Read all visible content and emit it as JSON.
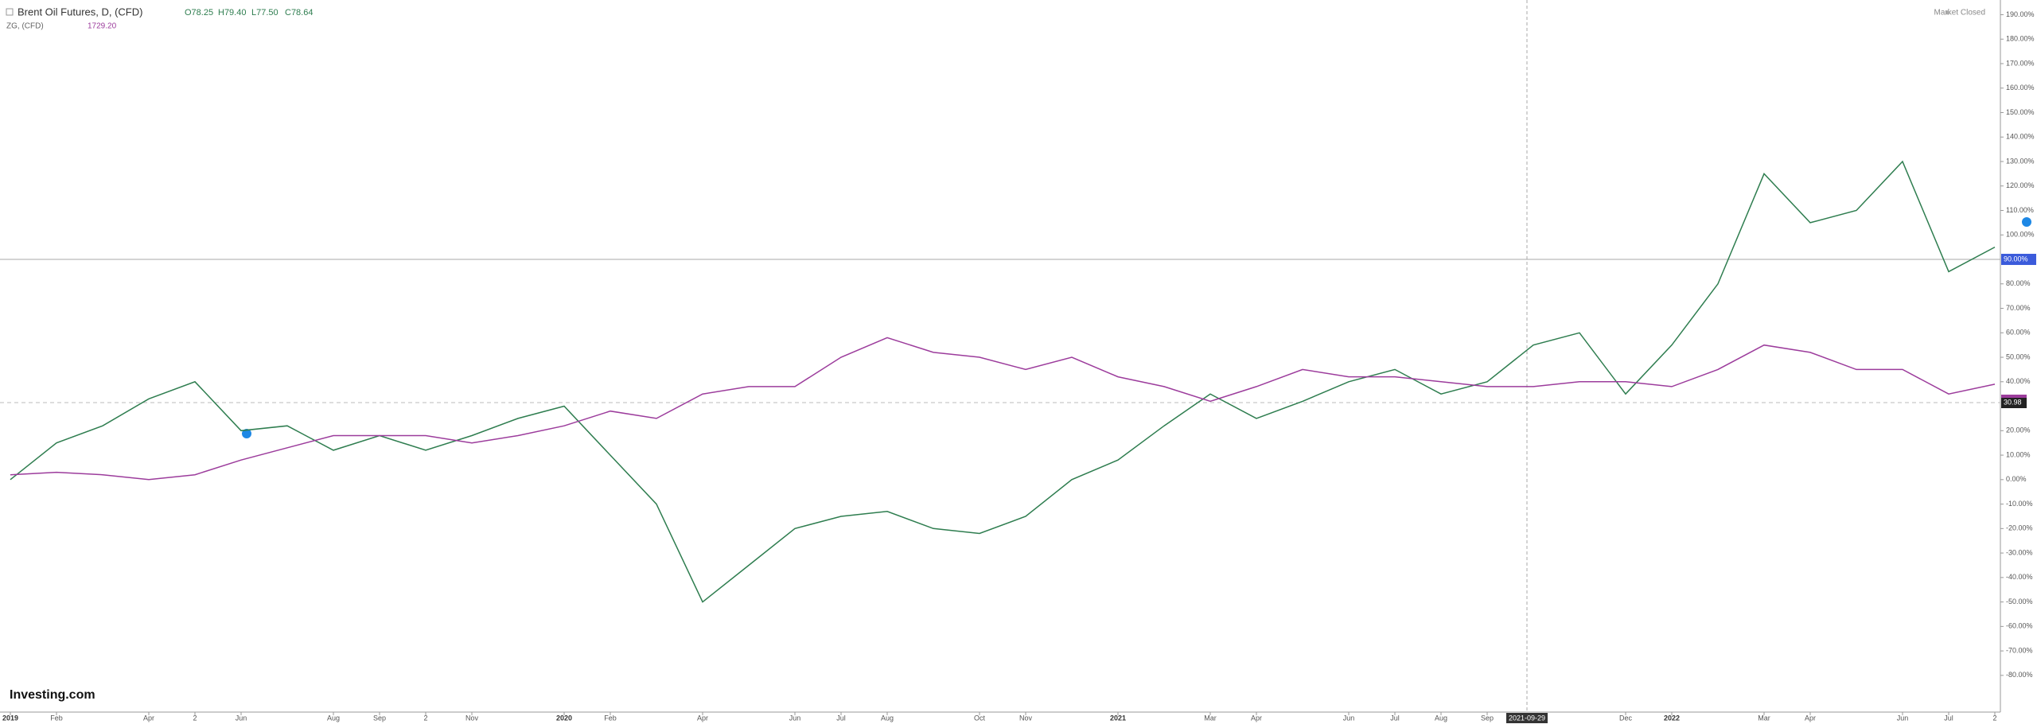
{
  "header": {
    "ohlc": [
      "O78.25",
      "H79.40",
      "L77.50",
      "C78.64"
    ],
    "second_value": "1729.20",
    "status": "Market Closed",
    "logo": "Investing.com"
  },
  "chart_data": {
    "type": "line",
    "x": [
      "2019-01",
      "2019-02",
      "2019-03",
      "2019-04",
      "2019-05",
      "2019-06",
      "2019-07",
      "2019-08",
      "2019-09",
      "2019-10",
      "2019-11",
      "2019-12",
      "2020-01",
      "2020-02",
      "2020-03",
      "2020-04",
      "2020-05",
      "2020-06",
      "2020-07",
      "2020-08",
      "2020-09",
      "2020-10",
      "2020-11",
      "2020-12",
      "2021-01",
      "2021-02",
      "2021-03",
      "2021-04",
      "2021-05",
      "2021-06",
      "2021-07",
      "2021-08",
      "2021-09",
      "2021-10",
      "2021-11",
      "2021-12",
      "2022-01",
      "2022-02",
      "2022-03",
      "2022-04",
      "2022-05",
      "2022-06",
      "2022-07",
      "2022-08"
    ],
    "xlim": [
      "2019-01",
      "2022-08"
    ],
    "xticks": [
      {
        "value": "2019-01",
        "label": "2019"
      },
      {
        "value": "2019-02",
        "label": "Feb"
      },
      {
        "value": "2019-04",
        "label": "Apr"
      },
      {
        "value": "2019-05",
        "label": "2"
      },
      {
        "value": "2019-06",
        "label": "Jun"
      },
      {
        "value": "2019-08",
        "label": "Aug"
      },
      {
        "value": "2019-09",
        "label": "Sep"
      },
      {
        "value": "2019-10",
        "label": "2"
      },
      {
        "value": "2019-11",
        "label": "Nov"
      },
      {
        "value": "2020-01",
        "label": "2020"
      },
      {
        "value": "2020-02",
        "label": "Feb"
      },
      {
        "value": "2020-04",
        "label": "Apr"
      },
      {
        "value": "2020-06",
        "label": "Jun"
      },
      {
        "value": "2020-07",
        "label": "Jul"
      },
      {
        "value": "2020-08",
        "label": "Aug"
      },
      {
        "value": "2020-10",
        "label": "Oct"
      },
      {
        "value": "2020-11",
        "label": "Nov"
      },
      {
        "value": "2021-01",
        "label": "2021"
      },
      {
        "value": "2021-03",
        "label": "Mar"
      },
      {
        "value": "2021-04",
        "label": "Apr"
      },
      {
        "value": "2021-06",
        "label": "Jun"
      },
      {
        "value": "2021-07",
        "label": "Jul"
      },
      {
        "value": "2021-08",
        "label": "Aug"
      },
      {
        "value": "2021-09",
        "label": "Sep"
      },
      {
        "value": "2021-12",
        "label": "Dec"
      },
      {
        "value": "2022-01",
        "label": "2022"
      },
      {
        "value": "2022-03",
        "label": "Mar"
      },
      {
        "value": "2022-04",
        "label": "Apr"
      },
      {
        "value": "2022-06",
        "label": "Jun"
      },
      {
        "value": "2022-07",
        "label": "Jul"
      },
      {
        "value": "2022-08",
        "label": "2"
      }
    ],
    "ylim": [
      -95,
      196
    ],
    "yticks": [
      {
        "value": 190,
        "label": "190.00%"
      },
      {
        "value": 180,
        "label": "180.00%"
      },
      {
        "value": 170,
        "label": "170.00%"
      },
      {
        "value": 160,
        "label": "160.00%"
      },
      {
        "value": 150,
        "label": "150.00%"
      },
      {
        "value": 140,
        "label": "140.00%"
      },
      {
        "value": 130,
        "label": "130.00%"
      },
      {
        "value": 120,
        "label": "120.00%"
      },
      {
        "value": 110,
        "label": "110.00%"
      },
      {
        "value": 100,
        "label": "100.00%"
      },
      {
        "value": 80,
        "label": "80.00%"
      },
      {
        "value": 70,
        "label": "70.00%"
      },
      {
        "value": 60,
        "label": "60.00%"
      },
      {
        "value": 50,
        "label": "50.00%"
      },
      {
        "value": 40,
        "label": "40.00%"
      },
      {
        "value": 20,
        "label": "20.00%"
      },
      {
        "value": 10,
        "label": "10.00%"
      },
      {
        "value": 0,
        "label": "0.00%"
      },
      {
        "value": -10,
        "label": "-10.00%"
      },
      {
        "value": -20,
        "label": "-20.00%"
      },
      {
        "value": -30,
        "label": "-30.00%"
      },
      {
        "value": -40,
        "label": "-40.00%"
      },
      {
        "value": -50,
        "label": "-50.00%"
      },
      {
        "value": -60,
        "label": "-60.00%"
      },
      {
        "value": -70,
        "label": "-70.00%"
      },
      {
        "value": -80,
        "label": "-80.00%"
      }
    ],
    "series": [
      {
        "name": "Brent Oil Futures, D, (CFD)",
        "color": "#2e7d4f",
        "values": [
          0,
          15,
          22,
          33,
          40,
          20,
          22,
          12,
          18,
          12,
          18,
          25,
          30,
          10,
          -10,
          -50,
          -35,
          -20,
          -15,
          -13,
          -20,
          -22,
          -15,
          0,
          8,
          22,
          35,
          25,
          32,
          40,
          45,
          35,
          40,
          55,
          60,
          35,
          55,
          80,
          125,
          105,
          110,
          130,
          85,
          95
        ]
      },
      {
        "name": "ZG, (CFD)",
        "color": "#9c3c9c",
        "values": [
          2,
          3,
          2,
          0,
          2,
          8,
          13,
          18,
          18,
          18,
          15,
          18,
          22,
          28,
          25,
          35,
          38,
          38,
          50,
          58,
          52,
          50,
          45,
          50,
          42,
          38,
          32,
          38,
          45,
          42,
          42,
          40,
          38,
          38,
          40,
          40,
          38,
          45,
          55,
          52,
          45,
          45,
          35,
          39
        ]
      }
    ],
    "crosshair": {
      "x_label": "2021-09-29",
      "y": {
        "value": 90,
        "label": "90.00%"
      }
    },
    "last_tag": "30.98",
    "grid": false
  }
}
